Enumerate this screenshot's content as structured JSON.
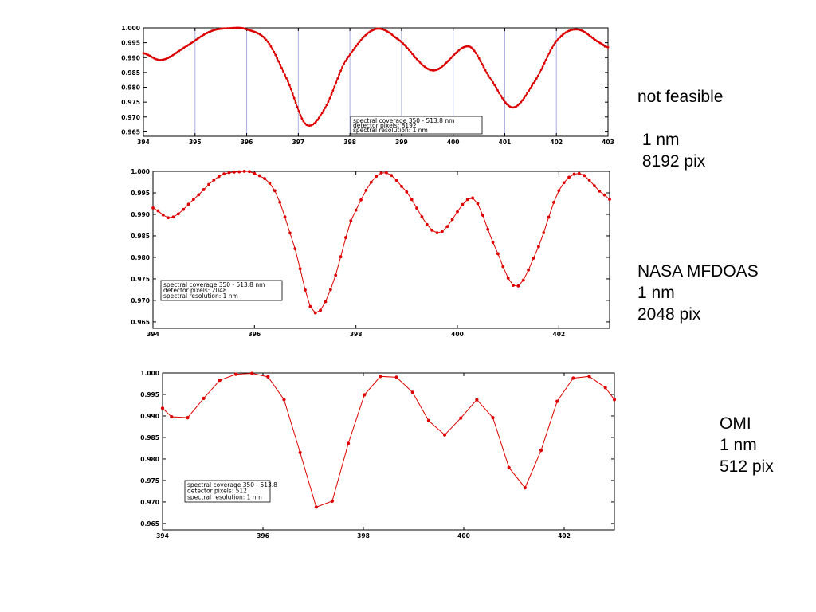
{
  "labels": {
    "top": [
      "not feasible",
      "",
      " 1 nm",
      " 8192 pix"
    ],
    "middle": [
      "NASA MFDOAS",
      "1 nm",
      "2048 pix"
    ],
    "bottom": [
      "OMI",
      "1 nm",
      "512 pix"
    ]
  },
  "colors": {
    "series": "#dd0000",
    "grid": "#aab0dd",
    "axis": "#000000"
  },
  "chart_data": [
    {
      "type": "line",
      "xlim": [
        394,
        403
      ],
      "ylim": [
        0.9635,
        1.0
      ],
      "xticks": [
        394,
        395,
        396,
        397,
        398,
        399,
        400,
        401,
        402,
        403
      ],
      "yticks": [
        0.965,
        0.97,
        0.975,
        0.98,
        0.985,
        0.99,
        0.995,
        1.0
      ],
      "ytick_labels": [
        "0.965",
        "0.970",
        "0.975",
        "0.980",
        "0.985",
        "0.990",
        "0.995",
        "1.000"
      ],
      "grid_x": true,
      "legend": [
        "spectral coverage 350 - 513.8 nm",
        "detector pixels:  8192",
        "spectral resolution:  1 nm"
      ],
      "legend_position": "bottom-center",
      "marker": "dot-small",
      "points": 300,
      "anchors": {
        "x": [
          394.0,
          394.35,
          394.8,
          395.3,
          395.7,
          396.0,
          396.4,
          396.8,
          397.15,
          397.5,
          397.9,
          398.45,
          398.9,
          399.6,
          400.3,
          400.7,
          401.15,
          401.6,
          402.0,
          402.4,
          402.9,
          403.0
        ],
        "y": [
          0.9915,
          0.9892,
          0.9935,
          0.9988,
          0.9999,
          0.9995,
          0.9955,
          0.982,
          0.9675,
          0.9725,
          0.9885,
          0.9993,
          0.9965,
          0.9857,
          0.9938,
          0.9835,
          0.9732,
          0.9825,
          0.9955,
          0.9995,
          0.9945,
          0.9935
        ]
      }
    },
    {
      "type": "line",
      "xlim": [
        394,
        403
      ],
      "ylim": [
        0.9635,
        1.0
      ],
      "xticks": [
        394,
        396,
        398,
        400,
        402
      ],
      "yticks": [
        0.965,
        0.97,
        0.975,
        0.98,
        0.985,
        0.99,
        0.995,
        1.0
      ],
      "ytick_labels": [
        "0.965",
        "0.970",
        "0.975",
        "0.980",
        "0.985",
        "0.990",
        "0.995",
        "1.000"
      ],
      "grid_x": false,
      "legend": [
        "spectral coverage 350 - 513.8 nm",
        "detector pixels:  2048",
        "spectral resolution:  1 nm"
      ],
      "legend_position": "bottom-left",
      "marker": "dot",
      "points": 91,
      "anchors": {
        "x": [
          394.0,
          394.35,
          394.8,
          395.3,
          395.7,
          396.0,
          396.4,
          396.8,
          397.15,
          397.5,
          397.9,
          398.45,
          398.9,
          399.6,
          400.3,
          400.7,
          401.15,
          401.6,
          402.0,
          402.4,
          402.9,
          403.0
        ],
        "y": [
          0.9915,
          0.9892,
          0.9935,
          0.9988,
          0.9999,
          0.9995,
          0.9955,
          0.982,
          0.9675,
          0.9725,
          0.9885,
          0.9993,
          0.9965,
          0.9857,
          0.9938,
          0.9835,
          0.9732,
          0.9825,
          0.9955,
          0.9995,
          0.9945,
          0.9935
        ]
      }
    },
    {
      "type": "line",
      "xlim": [
        394,
        403
      ],
      "ylim": [
        0.9635,
        1.0
      ],
      "xticks": [
        394,
        396,
        398,
        400,
        402
      ],
      "yticks": [
        0.965,
        0.97,
        0.975,
        0.98,
        0.985,
        0.99,
        0.995,
        1.0
      ],
      "ytick_labels": [
        "0.965",
        "0.970",
        "0.975",
        "0.980",
        "0.985",
        "0.990",
        "0.995",
        "1.000"
      ],
      "grid_x": false,
      "legend": [
        "spectral coverage 350 - 513.8",
        "detector pixels:  512",
        "spectral resolution:  1 nm"
      ],
      "legend_position": "bottom-left",
      "marker": "dot-large",
      "x": [
        394.0,
        394.18,
        394.5,
        394.82,
        395.14,
        395.46,
        395.78,
        396.1,
        396.42,
        396.74,
        397.06,
        397.38,
        397.7,
        398.02,
        398.34,
        398.66,
        398.98,
        399.3,
        399.62,
        399.94,
        400.26,
        400.58,
        400.9,
        401.22,
        401.54,
        401.86,
        402.18,
        402.5,
        402.82,
        403.0
      ],
      "y": [
        0.9918,
        0.9898,
        0.9896,
        0.9941,
        0.9983,
        0.9997,
        0.9999,
        0.9991,
        0.9938,
        0.9815,
        0.9688,
        0.9702,
        0.9836,
        0.9949,
        0.9992,
        0.999,
        0.9955,
        0.9889,
        0.9856,
        0.9895,
        0.9938,
        0.9896,
        0.978,
        0.9733,
        0.982,
        0.9934,
        0.9988,
        0.9992,
        0.9966,
        0.9938
      ]
    }
  ]
}
